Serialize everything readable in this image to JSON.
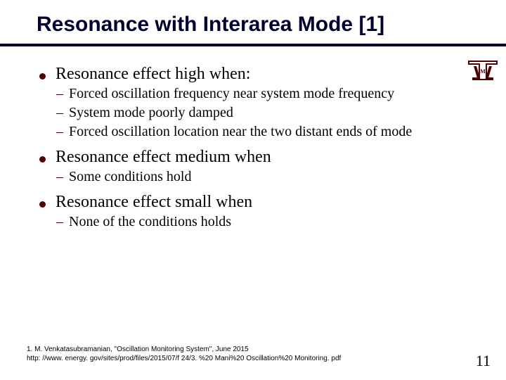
{
  "title": "Resonance with Interarea Mode [1]",
  "accent_color": "#500000",
  "rule_color": "#000033",
  "logo_colors": {
    "maroon": "#500000",
    "white": "#ffffff"
  },
  "bullets": [
    {
      "text": "Resonance effect high when:",
      "subs": [
        "Forced oscillation frequency near system mode frequency",
        " System mode poorly damped",
        "Forced oscillation location near the two distant ends of mode"
      ]
    },
    {
      "text": "Resonance effect medium when",
      "subs": [
        "Some conditions hold"
      ]
    },
    {
      "text": "Resonance effect small when",
      "subs": [
        "None of the conditions holds"
      ]
    }
  ],
  "footnote_line1": "1. M. Venkatasubramanian, \"Oscillation Monitoring System\",  June 2015",
  "footnote_line2": "http: //www. energy. gov/sites/prod/files/2015/07/f 24/3. %20 Mani%20 Oscillation%20 Monitoring. pdf",
  "page_number": "11"
}
